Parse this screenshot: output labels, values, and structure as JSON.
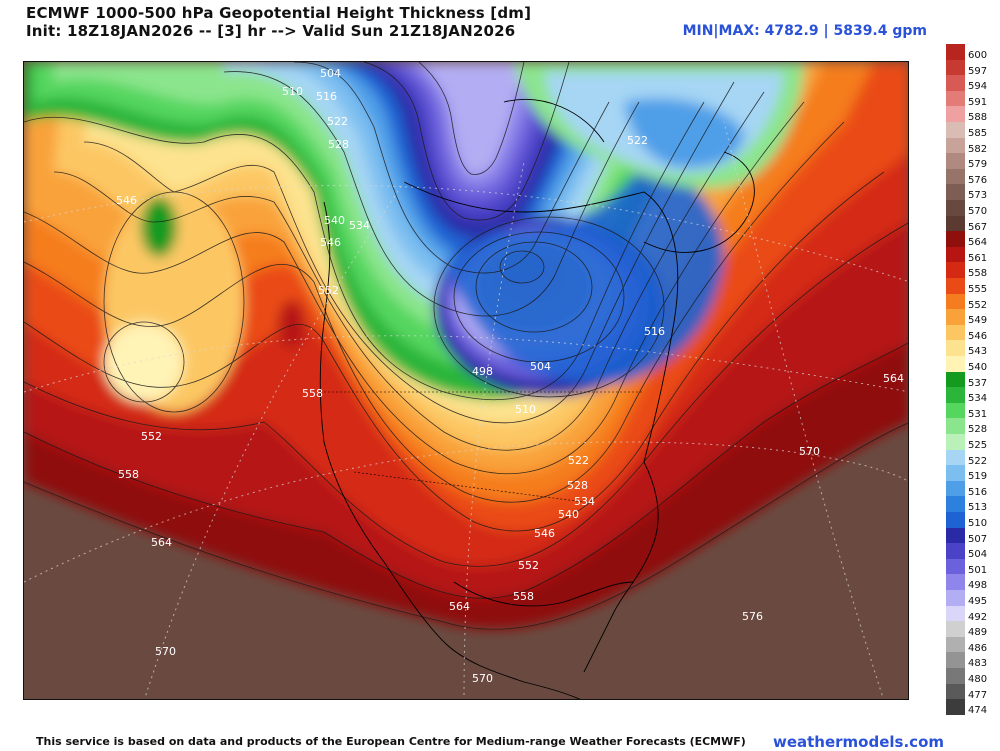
{
  "header": {
    "title": "ECMWF 1000-500 hPa Geopotential Height Thickness [dm]",
    "init": "Init: 18Z18JAN2026 -- [3] hr --> Valid Sun 21Z18JAN2026",
    "minmax": "MIN|MAX: 4782.9 | 5839.4 gpm"
  },
  "legend": {
    "levels": [
      {
        "label": "600",
        "color": "#b8251f"
      },
      {
        "label": "597",
        "color": "#c63a32"
      },
      {
        "label": "594",
        "color": "#d75a55"
      },
      {
        "label": "591",
        "color": "#e37b77"
      },
      {
        "label": "588",
        "color": "#efa0a0"
      },
      {
        "label": "585",
        "color": "#d9bcb3"
      },
      {
        "label": "582",
        "color": "#c8a399"
      },
      {
        "label": "579",
        "color": "#b08a80"
      },
      {
        "label": "576",
        "color": "#977469"
      },
      {
        "label": "573",
        "color": "#7e5e54"
      },
      {
        "label": "570",
        "color": "#684940"
      },
      {
        "label": "567",
        "color": "#5b3a31"
      },
      {
        "label": "564",
        "color": "#8f0f0c"
      },
      {
        "label": "561",
        "color": "#b61512"
      },
      {
        "label": "558",
        "color": "#d42a14"
      },
      {
        "label": "555",
        "color": "#ea4b16"
      },
      {
        "label": "552",
        "color": "#f57d1f"
      },
      {
        "label": "549",
        "color": "#f9a23a"
      },
      {
        "label": "546",
        "color": "#fcc763"
      },
      {
        "label": "543",
        "color": "#fde38f"
      },
      {
        "label": "540",
        "color": "#fff3b5"
      },
      {
        "label": "537",
        "color": "#159a20"
      },
      {
        "label": "534",
        "color": "#2bb53a"
      },
      {
        "label": "531",
        "color": "#55d65f"
      },
      {
        "label": "528",
        "color": "#8be58c"
      },
      {
        "label": "525",
        "color": "#b9f1b8"
      },
      {
        "label": "522",
        "color": "#a6d6f4"
      },
      {
        "label": "519",
        "color": "#7cbef0"
      },
      {
        "label": "516",
        "color": "#4f9fe8"
      },
      {
        "label": "513",
        "color": "#2d81de"
      },
      {
        "label": "510",
        "color": "#1e63d3"
      },
      {
        "label": "507",
        "color": "#2a2aa6"
      },
      {
        "label": "504",
        "color": "#4b43c7"
      },
      {
        "label": "501",
        "color": "#6c61dc"
      },
      {
        "label": "498",
        "color": "#8f85ea"
      },
      {
        "label": "495",
        "color": "#b3adf3"
      },
      {
        "label": "492",
        "color": "#d9d6f9"
      },
      {
        "label": "489",
        "color": "#d0d0d0"
      },
      {
        "label": "486",
        "color": "#b0b0b0"
      },
      {
        "label": "483",
        "color": "#949494"
      },
      {
        "label": "480",
        "color": "#787878"
      },
      {
        "label": "477",
        "color": "#5a5a5a"
      },
      {
        "label": "474",
        "color": "#3c3c3c"
      }
    ]
  },
  "map": {
    "contour_labels": [
      {
        "text": "504"
      },
      {
        "text": "510"
      },
      {
        "text": "516"
      },
      {
        "text": "522"
      },
      {
        "text": "528"
      },
      {
        "text": "546"
      },
      {
        "text": "540"
      },
      {
        "text": "534"
      },
      {
        "text": "546"
      },
      {
        "text": "552"
      },
      {
        "text": "558"
      },
      {
        "text": "552"
      },
      {
        "text": "558"
      },
      {
        "text": "564"
      },
      {
        "text": "570"
      },
      {
        "text": "522"
      },
      {
        "text": "498"
      },
      {
        "text": "504"
      },
      {
        "text": "510"
      },
      {
        "text": "516"
      },
      {
        "text": "564"
      },
      {
        "text": "570"
      },
      {
        "text": "522"
      },
      {
        "text": "528"
      },
      {
        "text": "534"
      },
      {
        "text": "540"
      },
      {
        "text": "546"
      },
      {
        "text": "552"
      },
      {
        "text": "558"
      },
      {
        "text": "564"
      },
      {
        "text": "570"
      },
      {
        "text": "576"
      }
    ]
  },
  "footer": {
    "credit": "This service is based on data and products of the European Centre for Medium-range Weather Forecasts (ECMWF)",
    "site": "weathermodels.com"
  }
}
